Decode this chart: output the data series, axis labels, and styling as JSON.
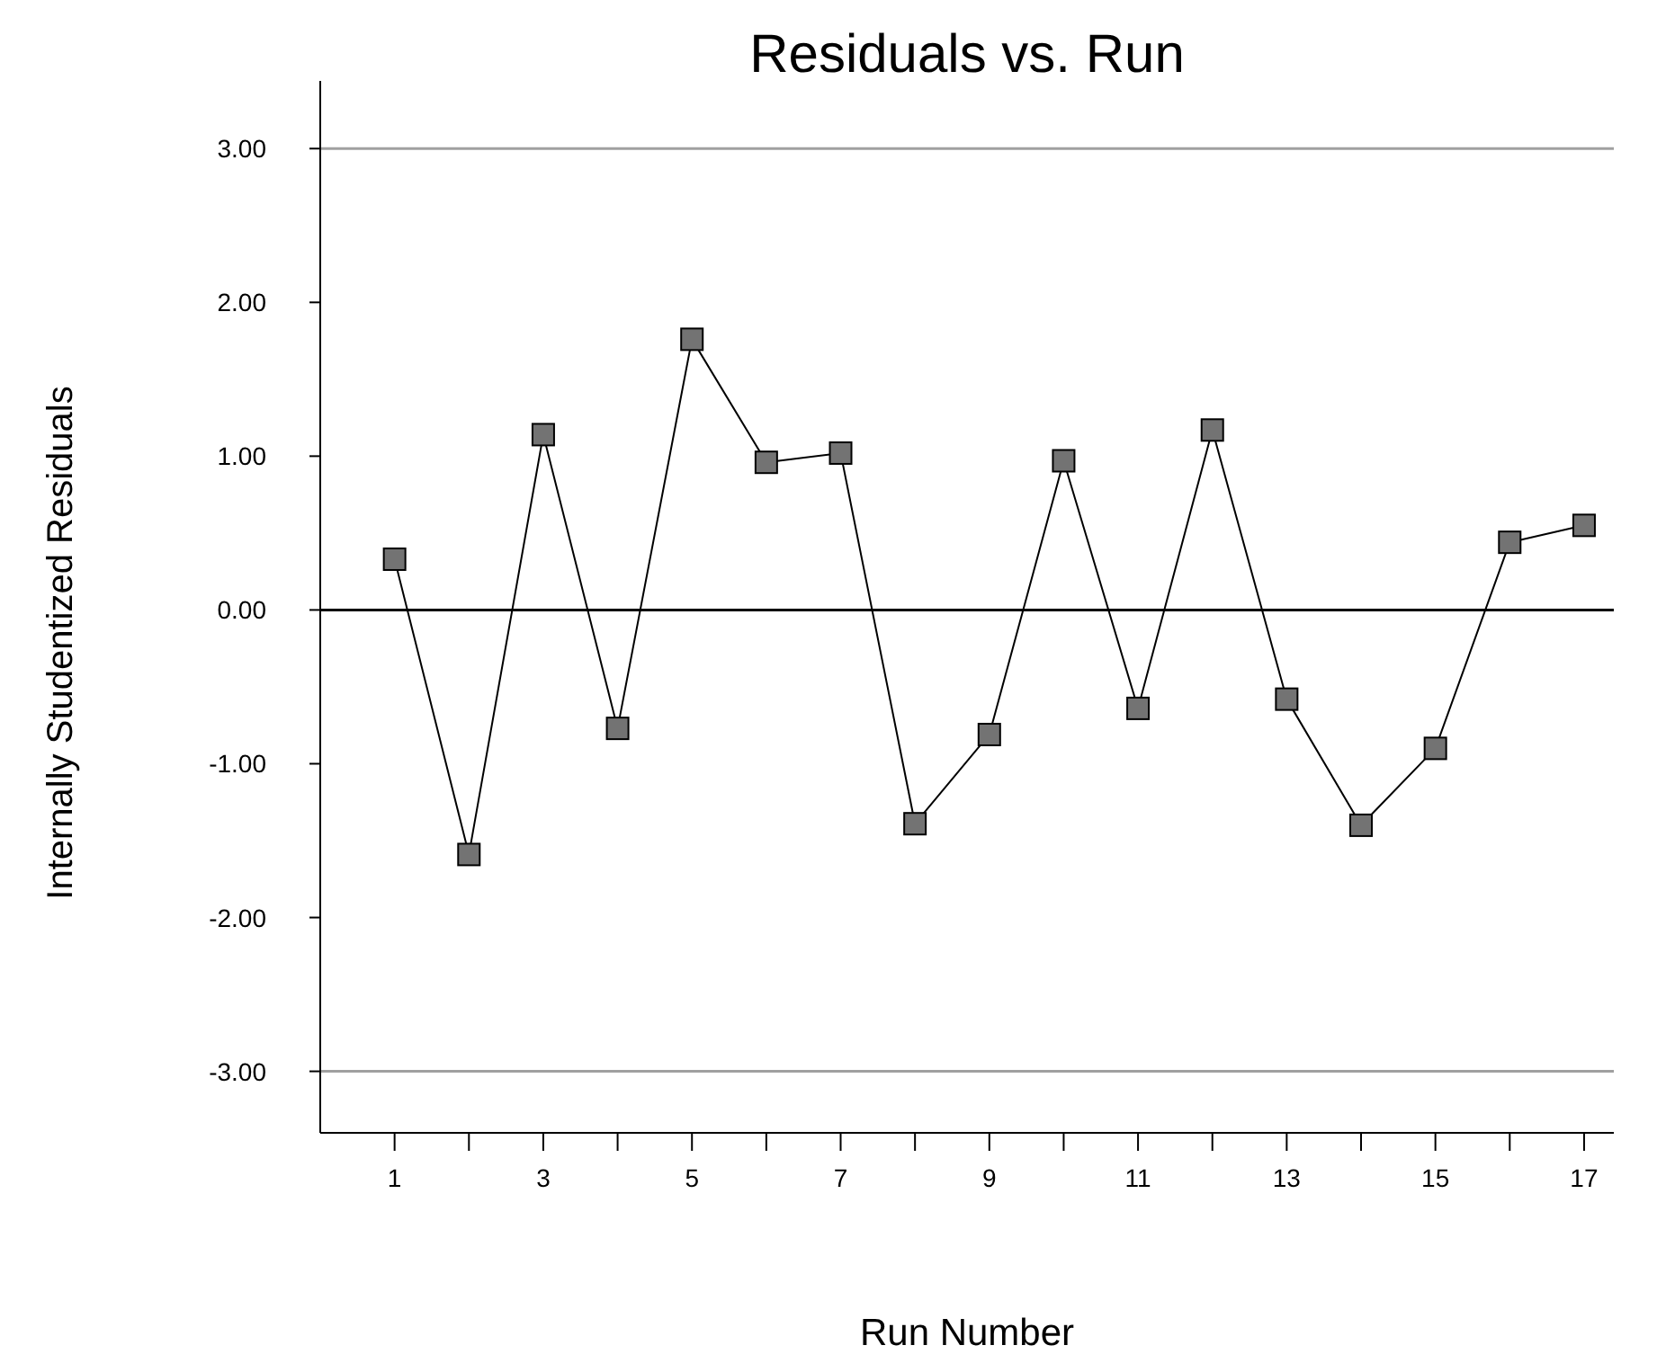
{
  "chart_data": {
    "type": "line",
    "title": "Residuals vs. Run",
    "xlabel": "Run Number",
    "ylabel": "Internally Studentized Residuals",
    "x": [
      1,
      2,
      3,
      4,
      5,
      6,
      7,
      8,
      9,
      10,
      11,
      12,
      13,
      14,
      15,
      16,
      17
    ],
    "series": [
      {
        "color": "#000000",
        "values": [
          0.33,
          -1.59,
          1.14,
          -0.77,
          1.76,
          0.96,
          1.02,
          -1.39,
          -0.81,
          0.97,
          -0.64,
          1.17,
          -0.58,
          -1.4,
          -0.9,
          0.44,
          0.55
        ]
      }
    ],
    "marker": "square",
    "line_style": "solid",
    "xlim": [
      0,
      17.4
    ],
    "ylim": [
      -3.4,
      3.44
    ],
    "xticks": [
      1,
      {
        "value": 2,
        "label": null
      },
      3,
      {
        "value": 4,
        "label": null
      },
      5,
      {
        "value": 6,
        "label": null
      },
      7,
      {
        "value": 8,
        "label": null
      },
      9,
      {
        "value": 10,
        "label": null
      },
      11,
      {
        "value": 12,
        "label": null
      },
      13,
      {
        "value": 14,
        "label": null
      },
      15,
      {
        "value": 16,
        "label": null
      },
      17
    ],
    "yticks": [
      {
        "value": -3,
        "label": "-3.00"
      },
      {
        "value": -2,
        "label": "-2.00"
      },
      {
        "value": -1,
        "label": "-1.00"
      },
      {
        "value": 0,
        "label": "0.00"
      },
      {
        "value": 1,
        "label": "1.00"
      },
      {
        "value": 2,
        "label": "2.00"
      },
      {
        "value": 3,
        "label": "3.00"
      }
    ],
    "ref_lines": [
      {
        "axis": "y",
        "value": 3,
        "color": "#a0a0a0"
      },
      {
        "axis": "y",
        "value": 0,
        "color": "#000000"
      },
      {
        "axis": "y",
        "value": -3,
        "color": "#a0a0a0"
      }
    ]
  }
}
